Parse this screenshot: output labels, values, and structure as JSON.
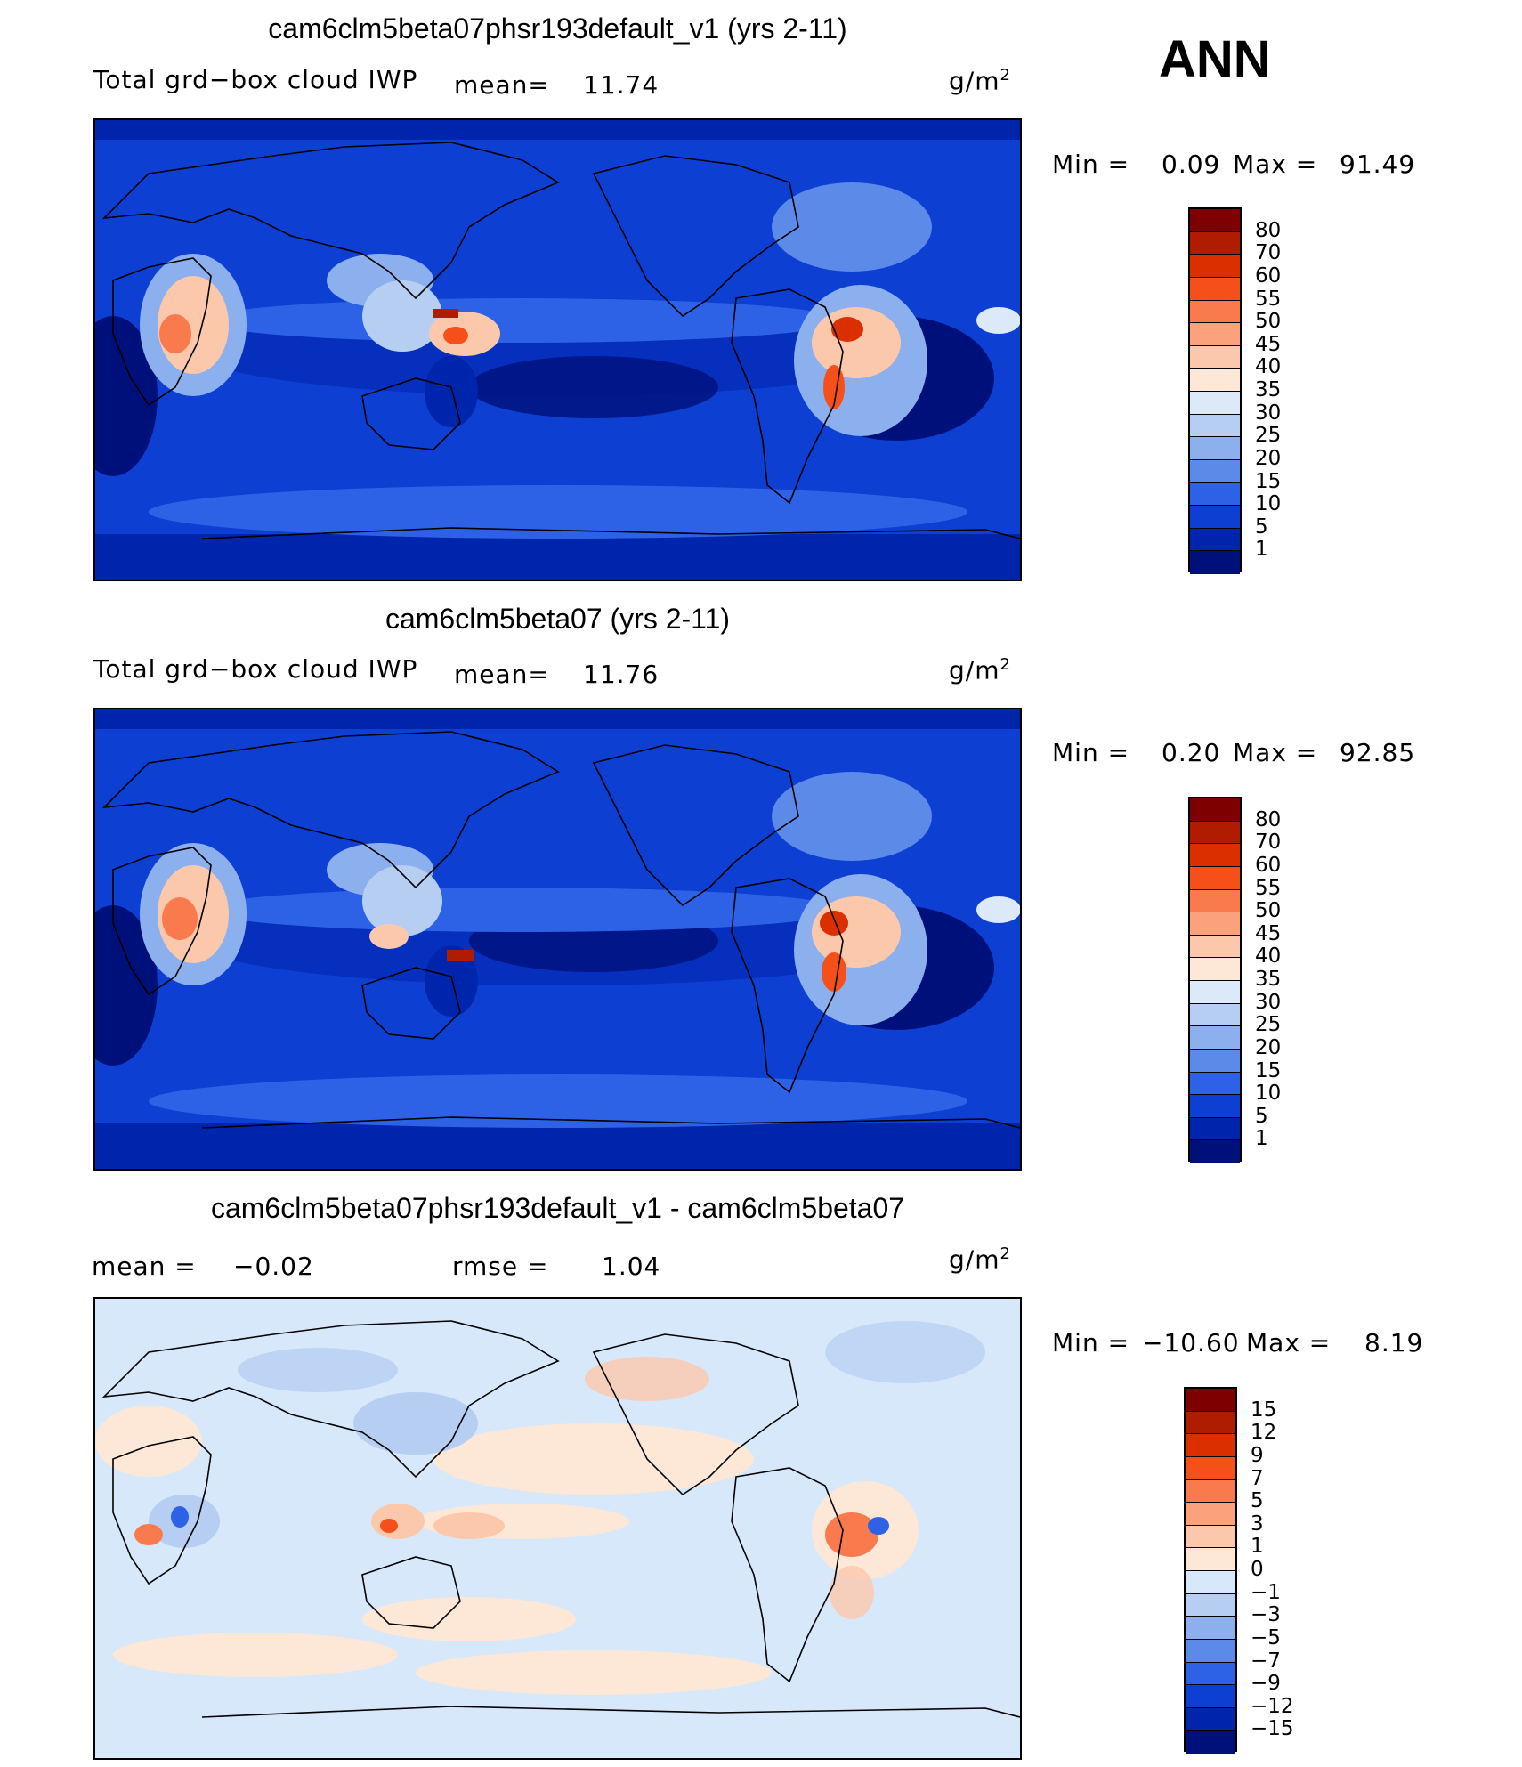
{
  "season": "ANN",
  "units": "g/m2",
  "panels": [
    {
      "title": "cam6clm5beta07phsr193default_v1 (yrs 2-11)",
      "variable": "Total grd−box cloud IWP",
      "stat1_label": "mean=",
      "stat1_value": "11.74",
      "min_label": "Min  =",
      "min_value": "0.09",
      "max_label": "Max  =",
      "max_value": "91.49",
      "levels": [
        "80",
        "70",
        "60",
        "55",
        "50",
        "45",
        "40",
        "35",
        "30",
        "25",
        "20",
        "15",
        "10",
        "5",
        "1"
      ],
      "colors": [
        "#7f0000",
        "#b01c00",
        "#db2f00",
        "#f5501a",
        "#f97b4d",
        "#fba17c",
        "#fcc8ac",
        "#fde7d6",
        "#dbe9f8",
        "#b6cef2",
        "#8cb0ee",
        "#5b8ae8",
        "#2d62e6",
        "#0d3fd3",
        "#0025ad",
        "#00107a"
      ]
    },
    {
      "title": "cam6clm5beta07 (yrs 2-11)",
      "variable": "Total grd−box cloud IWP",
      "stat1_label": "mean=",
      "stat1_value": "11.76",
      "min_label": "Min  =",
      "min_value": "0.20",
      "max_label": "Max  =",
      "max_value": "92.85",
      "levels": [
        "80",
        "70",
        "60",
        "55",
        "50",
        "45",
        "40",
        "35",
        "30",
        "25",
        "20",
        "15",
        "10",
        "5",
        "1"
      ],
      "colors": [
        "#7f0000",
        "#b01c00",
        "#db2f00",
        "#f5501a",
        "#f97b4d",
        "#fba17c",
        "#fcc8ac",
        "#fde7d6",
        "#dbe9f8",
        "#b6cef2",
        "#8cb0ee",
        "#5b8ae8",
        "#2d62e6",
        "#0d3fd3",
        "#0025ad",
        "#00107a"
      ]
    },
    {
      "title": "cam6clm5beta07phsr193default_v1 - cam6clm5beta07",
      "stat1_label": "mean  =",
      "stat1_value": "−0.02",
      "stat2_label": "rmse  =",
      "stat2_value": "1.04",
      "min_label": "Min  =",
      "min_value": "−10.60",
      "max_label": "Max  =",
      "max_value": "8.19",
      "levels": [
        "15",
        "12",
        "9",
        "7",
        "5",
        "3",
        "1",
        "0",
        "−1",
        "−3",
        "−5",
        "−7",
        "−9",
        "−12",
        "−15"
      ],
      "colors": [
        "#7f0000",
        "#b01c00",
        "#db2f00",
        "#f5501a",
        "#f97b4d",
        "#fba17c",
        "#fcc8ac",
        "#fde7d6",
        "#d7e8fb",
        "#b6cef2",
        "#8cb0ee",
        "#5b8ae8",
        "#2d62e6",
        "#0d3fd3",
        "#0025ad",
        "#00107a"
      ]
    }
  ]
}
